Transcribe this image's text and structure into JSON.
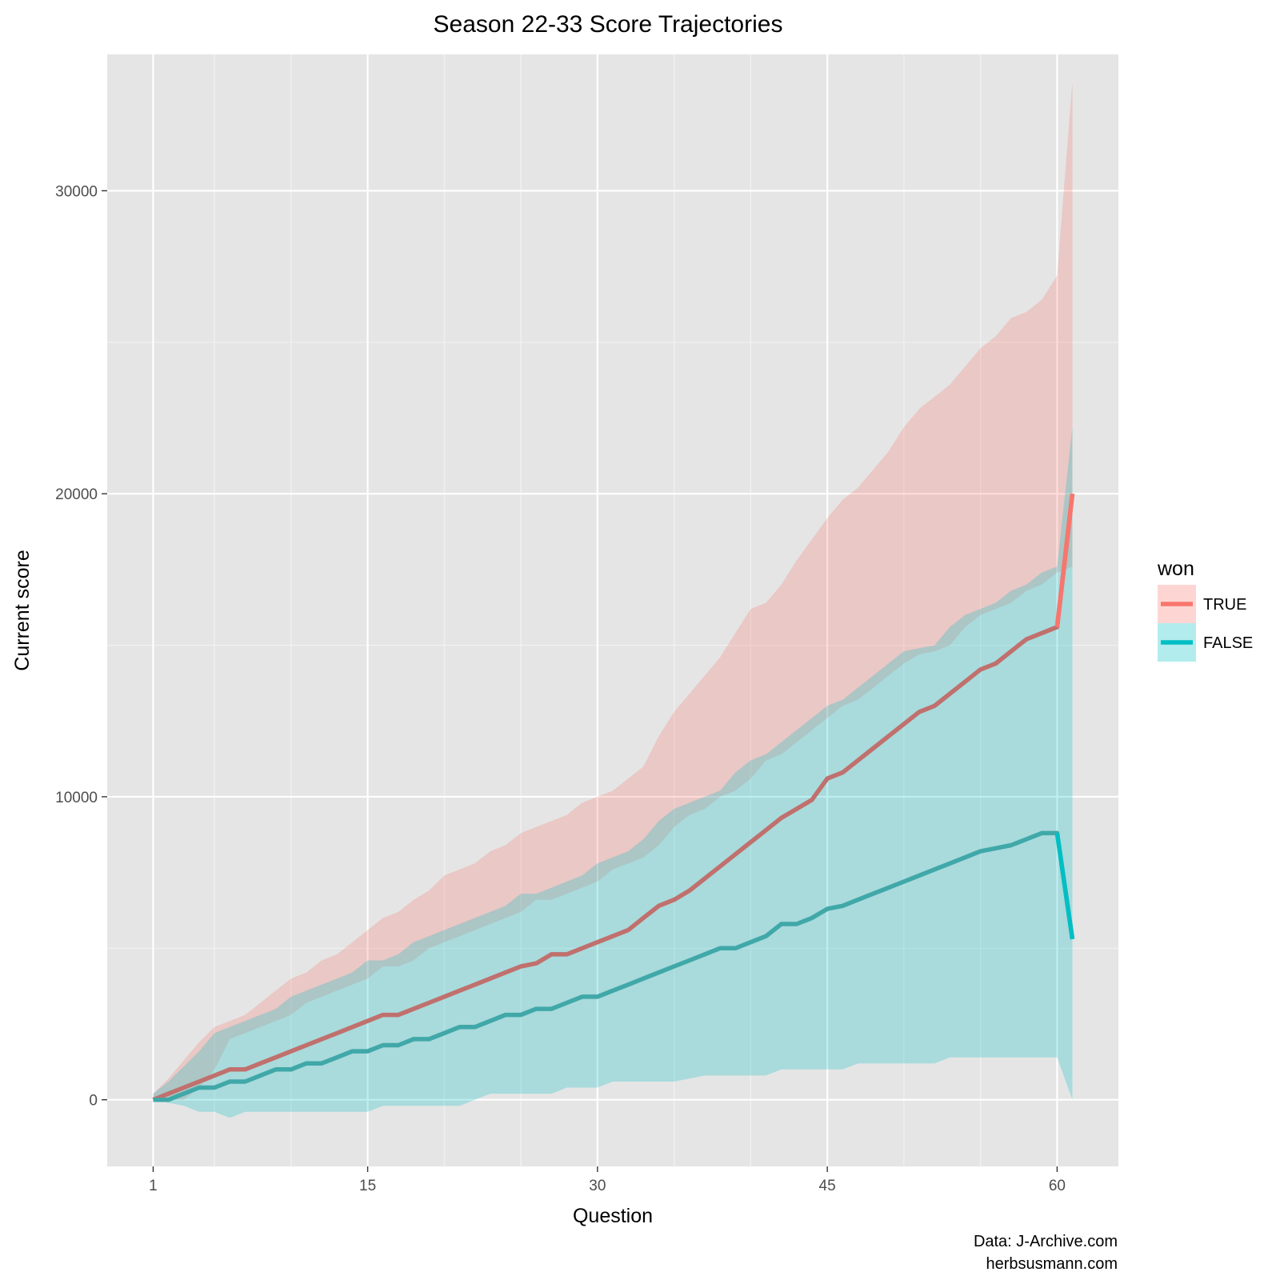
{
  "chart_data": {
    "type": "line",
    "title": "Season 22-33 Score Trajectories",
    "xlabel": "Question",
    "ylabel": "Current score",
    "xlim": [
      -2,
      64
    ],
    "ylim": [
      -2200,
      34500
    ],
    "x_ticks": [
      1,
      15,
      30,
      45,
      60
    ],
    "x_tick_labels": [
      "1",
      "15",
      "30",
      "45",
      "60"
    ],
    "x_minor_ticks": [
      5,
      10,
      20,
      25,
      35,
      40,
      50,
      55
    ],
    "y_ticks": [
      0,
      10000,
      20000,
      30000
    ],
    "y_tick_labels": [
      "0",
      "10000",
      "20000",
      "30000"
    ],
    "y_minor_ticks": [
      5000,
      15000,
      25000,
      35000
    ],
    "grid": true,
    "legend": {
      "title": "won",
      "position": "right"
    },
    "caption": [
      "Data: J-Archive.com",
      "herbsusmann.com"
    ],
    "series": [
      {
        "name": "TRUE",
        "color": "#F8766D",
        "line_color": "#C0706D",
        "x": [
          1,
          2,
          3,
          4,
          5,
          6,
          7,
          8,
          9,
          10,
          11,
          12,
          13,
          14,
          15,
          16,
          17,
          18,
          19,
          20,
          21,
          22,
          23,
          24,
          25,
          26,
          27,
          28,
          29,
          30,
          31,
          32,
          33,
          34,
          35,
          36,
          37,
          38,
          39,
          40,
          41,
          42,
          43,
          44,
          45,
          46,
          47,
          48,
          49,
          50,
          51,
          52,
          53,
          54,
          55,
          56,
          57,
          58,
          59,
          60,
          61
        ],
        "values": [
          0,
          200,
          400,
          600,
          800,
          1000,
          1000,
          1200,
          1400,
          1600,
          1800,
          2000,
          2200,
          2400,
          2600,
          2800,
          2800,
          3000,
          3200,
          3400,
          3600,
          3800,
          4000,
          4200,
          4400,
          4500,
          4800,
          4800,
          5000,
          5200,
          5400,
          5600,
          6000,
          6400,
          6600,
          6900,
          7300,
          7700,
          8100,
          8500,
          8900,
          9300,
          9600,
          9900,
          10600,
          10800,
          11200,
          11600,
          12000,
          12400,
          12800,
          13000,
          13400,
          13800,
          14200,
          14400,
          14800,
          15200,
          15400,
          15600,
          20000
        ],
        "lower": [
          0,
          0,
          0,
          400,
          1000,
          2000,
          2200,
          2400,
          2600,
          2800,
          3200,
          3400,
          3600,
          3800,
          4000,
          4400,
          4400,
          4600,
          5000,
          5200,
          5400,
          5600,
          5800,
          6000,
          6200,
          6600,
          6600,
          6800,
          7000,
          7200,
          7600,
          7800,
          8000,
          8400,
          9000,
          9400,
          9600,
          10000,
          10200,
          10600,
          11200,
          11400,
          11800,
          12200,
          12600,
          13000,
          13200,
          13600,
          14000,
          14400,
          14700,
          14800,
          15000,
          15600,
          16000,
          16200,
          16400,
          16800,
          17000,
          17400,
          17600
        ],
        "upper": [
          200,
          700,
          1300,
          1900,
          2400,
          2600,
          2800,
          3200,
          3600,
          4000,
          4200,
          4600,
          4800,
          5200,
          5600,
          6000,
          6200,
          6600,
          6900,
          7400,
          7600,
          7800,
          8200,
          8400,
          8800,
          9000,
          9200,
          9400,
          9800,
          10000,
          10200,
          10600,
          11000,
          12000,
          12800,
          13400,
          14000,
          14600,
          15400,
          16200,
          16400,
          17000,
          17800,
          18500,
          19200,
          19800,
          20200,
          20800,
          21400,
          22200,
          22800,
          23200,
          23600,
          24200,
          24800,
          25200,
          25800,
          26000,
          26400,
          27200,
          33600
        ]
      },
      {
        "name": "FALSE",
        "color": "#00BFC4",
        "line_color": "#40A8A8",
        "x": [
          1,
          2,
          3,
          4,
          5,
          6,
          7,
          8,
          9,
          10,
          11,
          12,
          13,
          14,
          15,
          16,
          17,
          18,
          19,
          20,
          21,
          22,
          23,
          24,
          25,
          26,
          27,
          28,
          29,
          30,
          31,
          32,
          33,
          34,
          35,
          36,
          37,
          38,
          39,
          40,
          41,
          42,
          43,
          44,
          45,
          46,
          47,
          48,
          49,
          50,
          51,
          52,
          53,
          54,
          55,
          56,
          57,
          58,
          59,
          60,
          61
        ],
        "values": [
          0,
          0,
          200,
          400,
          400,
          600,
          600,
          800,
          1000,
          1000,
          1200,
          1200,
          1400,
          1600,
          1600,
          1800,
          1800,
          2000,
          2000,
          2200,
          2400,
          2400,
          2600,
          2800,
          2800,
          3000,
          3000,
          3200,
          3400,
          3400,
          3600,
          3800,
          4000,
          4200,
          4400,
          4600,
          4800,
          5000,
          5000,
          5200,
          5400,
          5800,
          5800,
          6000,
          6300,
          6400,
          6600,
          6800,
          7000,
          7200,
          7400,
          7600,
          7800,
          8000,
          8200,
          8300,
          8400,
          8600,
          8800,
          8800,
          5300
        ],
        "lower": [
          0,
          -100,
          -200,
          -400,
          -400,
          -600,
          -400,
          -400,
          -400,
          -400,
          -400,
          -400,
          -400,
          -400,
          -400,
          -200,
          -200,
          -200,
          -200,
          -200,
          -200,
          0,
          200,
          200,
          200,
          200,
          200,
          400,
          400,
          400,
          600,
          600,
          600,
          600,
          600,
          700,
          800,
          800,
          800,
          800,
          800,
          1000,
          1000,
          1000,
          1000,
          1000,
          1200,
          1200,
          1200,
          1200,
          1200,
          1200,
          1400,
          1400,
          1400,
          1400,
          1400,
          1400,
          1400,
          1400,
          0
        ],
        "upper": [
          200,
          600,
          1100,
          1600,
          2200,
          2400,
          2600,
          2800,
          3000,
          3400,
          3600,
          3800,
          4000,
          4200,
          4600,
          4600,
          4800,
          5200,
          5400,
          5600,
          5800,
          6000,
          6200,
          6400,
          6800,
          6800,
          7000,
          7200,
          7400,
          7800,
          8000,
          8200,
          8600,
          9200,
          9600,
          9800,
          10000,
          10200,
          10800,
          11200,
          11400,
          11800,
          12200,
          12600,
          13000,
          13200,
          13600,
          14000,
          14400,
          14800,
          14900,
          15000,
          15600,
          16000,
          16200,
          16400,
          16800,
          17000,
          17400,
          17600,
          22200
        ]
      }
    ]
  }
}
